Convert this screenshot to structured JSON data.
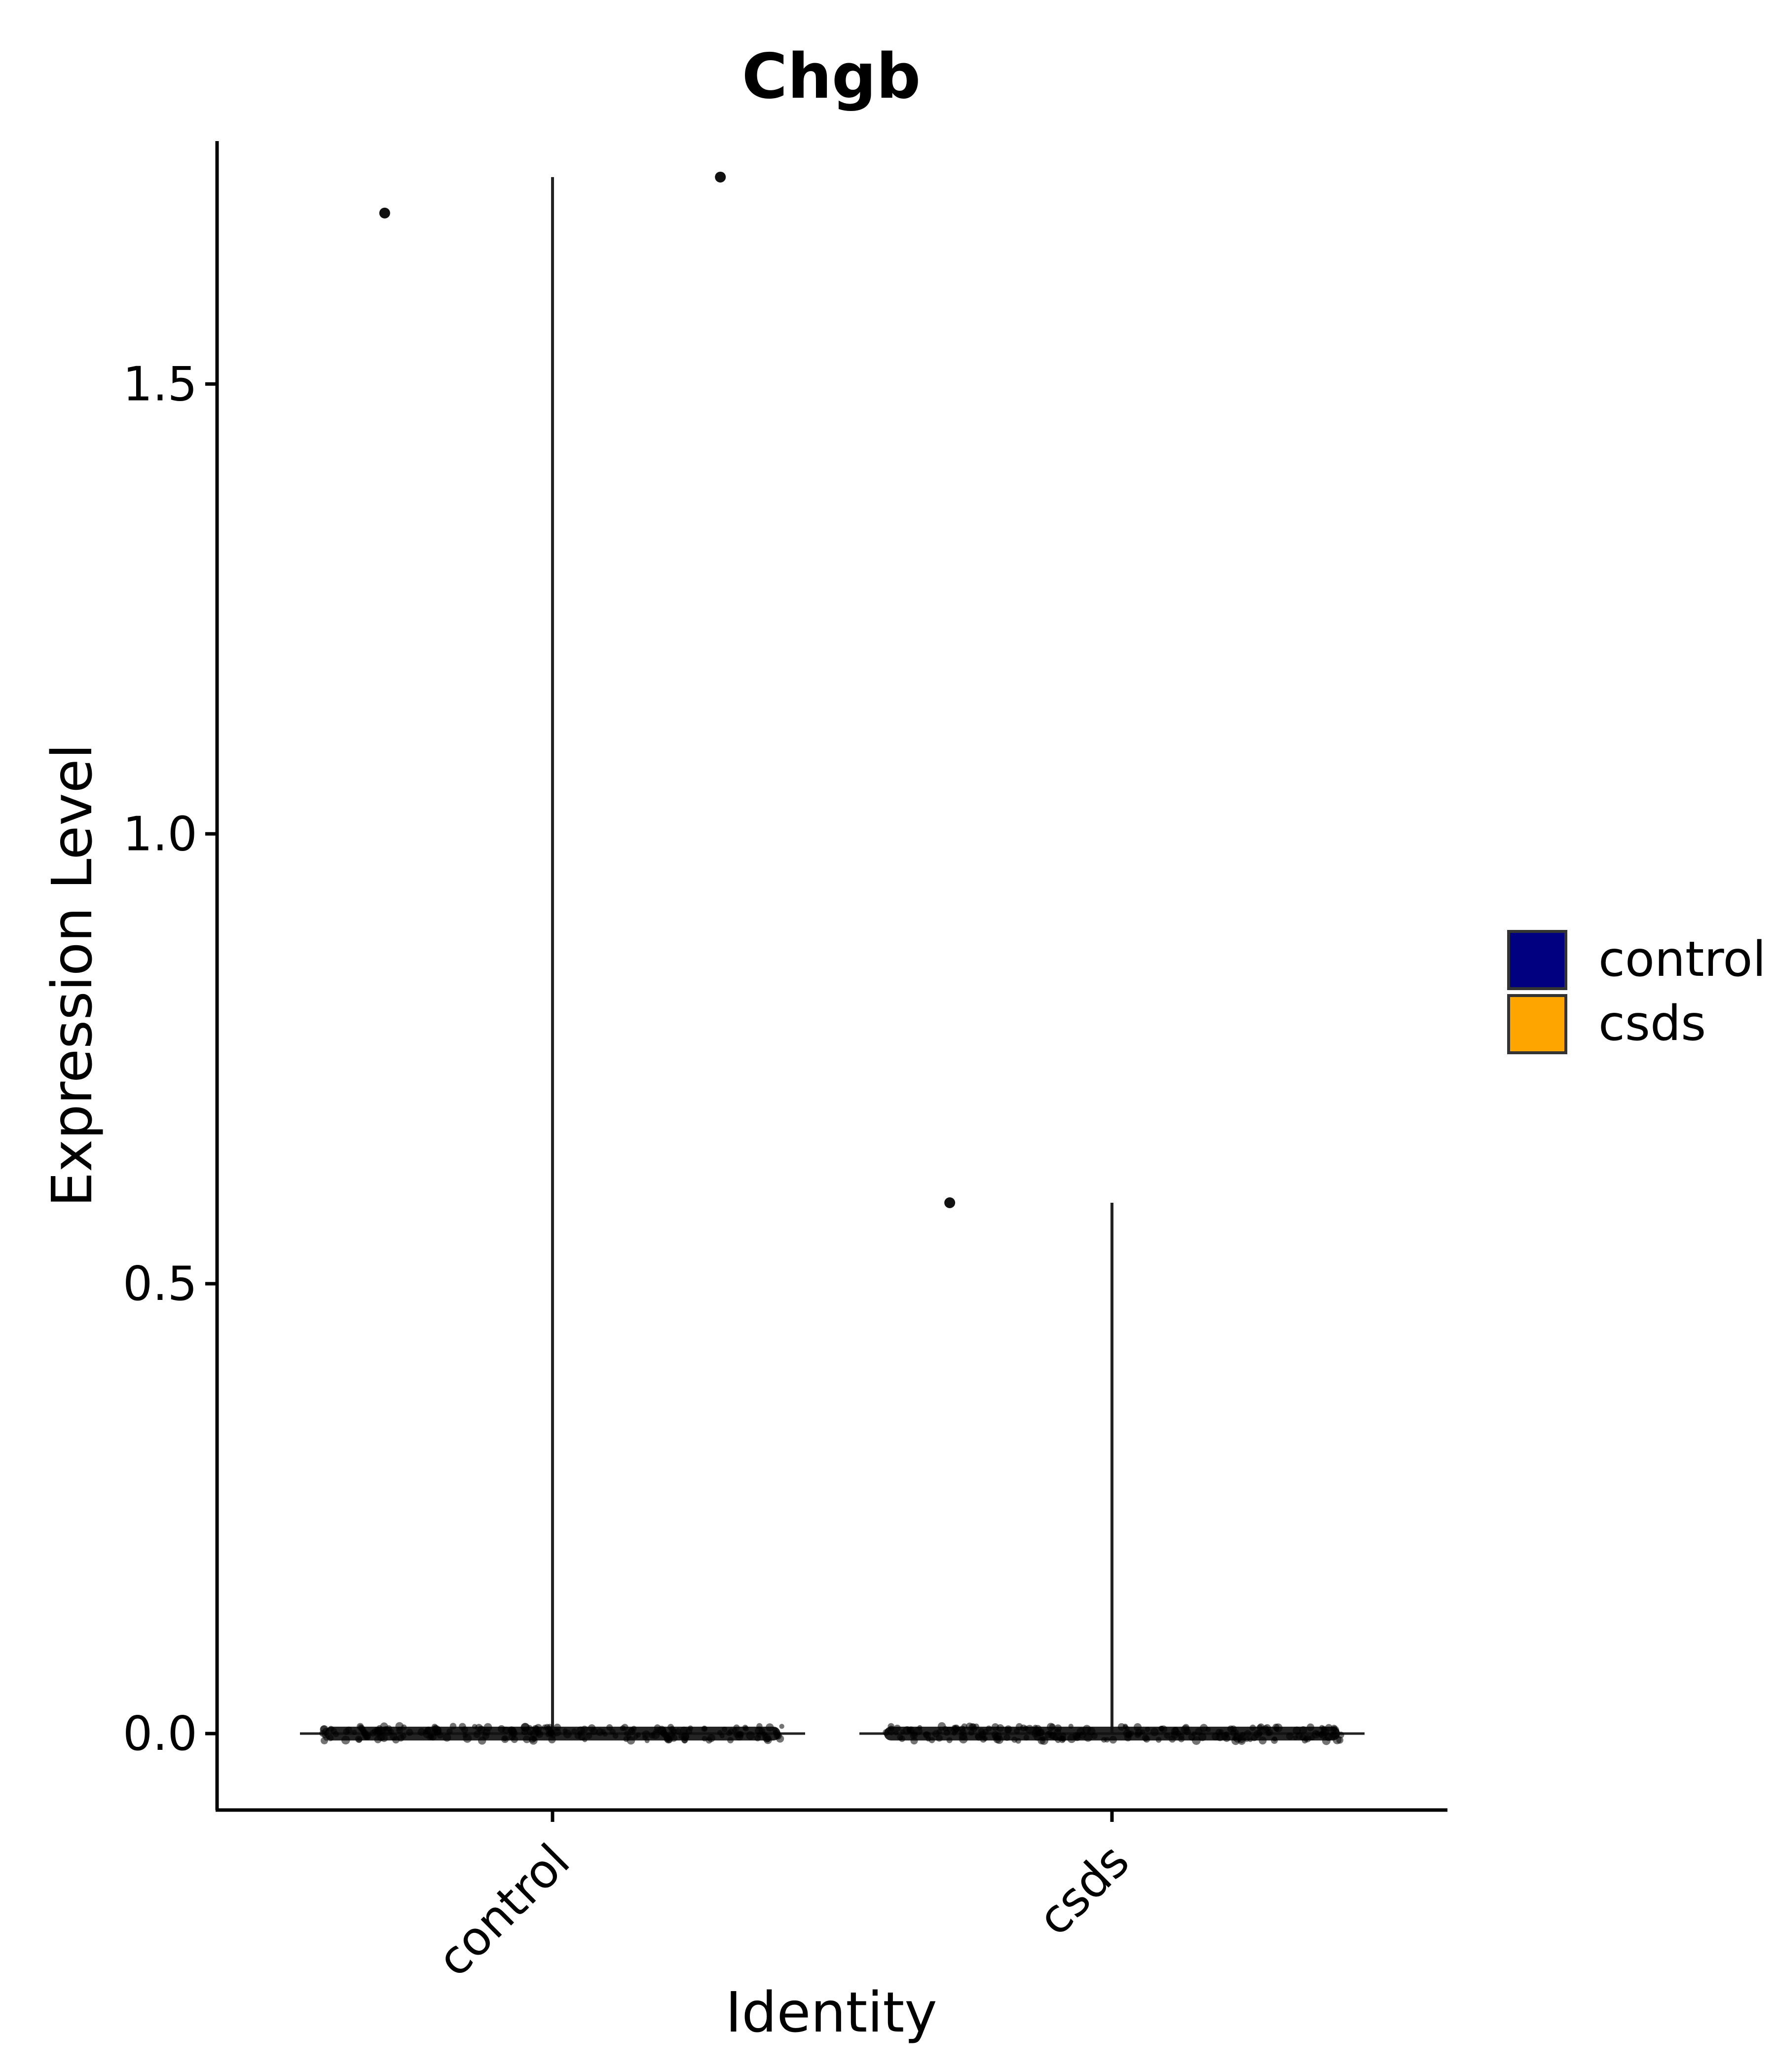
{
  "chart_data": {
    "type": "violin",
    "title": "Chgb",
    "xlabel": "Identity",
    "ylabel": "Expression Level",
    "categories": [
      "control",
      "csds"
    ],
    "ylim": [
      -0.085,
      1.77
    ],
    "y_ticks": [
      {
        "value": 0.0,
        "label": "0.0"
      },
      {
        "value": 0.5,
        "label": "0.5"
      },
      {
        "value": 1.0,
        "label": "1.0"
      },
      {
        "value": 1.5,
        "label": "1.5"
      }
    ],
    "series": [
      {
        "name": "control",
        "color": "#000080",
        "violin_max": 1.73,
        "bulk_value": 0.0,
        "outlier_points": [
          {
            "x_offset": -0.3,
            "y": 1.69
          },
          {
            "x_offset": 0.3,
            "y": 1.73
          }
        ]
      },
      {
        "name": "csds",
        "color": "#FFA500",
        "violin_max": 0.59,
        "bulk_value": 0.0,
        "outlier_points": [
          {
            "x_offset": -0.29,
            "y": 0.59
          }
        ]
      }
    ],
    "grid": false,
    "legend_position": "right",
    "legend": [
      {
        "label": "control",
        "color": "#000080"
      },
      {
        "label": "csds",
        "color": "#FFA500"
      }
    ]
  }
}
